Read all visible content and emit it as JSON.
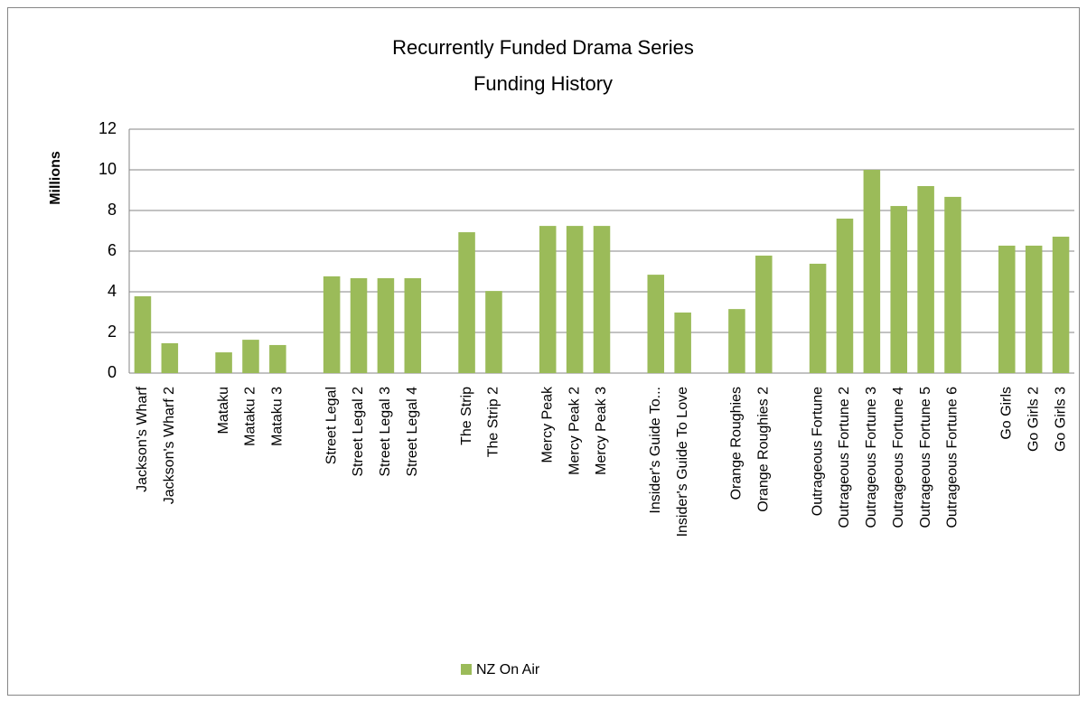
{
  "chart_data": {
    "type": "bar",
    "title": [
      "Recurrently Funded Drama Series",
      "Funding History"
    ],
    "y_label": "Millions",
    "categories": [
      "Jackson's Wharf",
      "Jackson's Wharf 2",
      null,
      "Mataku",
      "Mataku 2",
      "Mataku 3",
      null,
      "Street Legal",
      "Street Legal 2",
      "Street Legal 3",
      "Street Legal 4",
      null,
      "The Strip",
      "The Strip 2",
      null,
      "Mercy Peak",
      "Mercy Peak 2",
      "Mercy Peak 3",
      null,
      "Insider's Guide To...",
      "Insider's Guide To Love",
      null,
      "Orange Roughies",
      "Orange Roughies 2",
      null,
      "Outrageous Fortune",
      "Outrageous Fortune 2",
      "Outrageous Fortune 3",
      "Outrageous Fortune 4",
      "Outrageous Fortune 5",
      "Outrageous Fortune 6",
      null,
      "Go Girls",
      "Go Girls 2",
      "Go Girls 3"
    ],
    "series": [
      {
        "name": "NZ On Air",
        "color": "#9bbb59",
        "values": [
          3.78,
          1.47,
          null,
          1.02,
          1.64,
          1.38,
          null,
          4.76,
          4.67,
          4.67,
          4.67,
          null,
          6.93,
          4.04,
          null,
          7.24,
          7.24,
          7.24,
          null,
          4.84,
          2.98,
          null,
          3.15,
          5.78,
          null,
          5.38,
          7.6,
          10,
          8.22,
          9.2,
          8.67,
          null,
          6.27,
          6.27,
          6.71
        ]
      }
    ],
    "ylim": [
      0,
      12
    ],
    "yticks": [
      0,
      2,
      4,
      6,
      8,
      10,
      12
    ],
    "grid": true,
    "legend": "bottom"
  }
}
